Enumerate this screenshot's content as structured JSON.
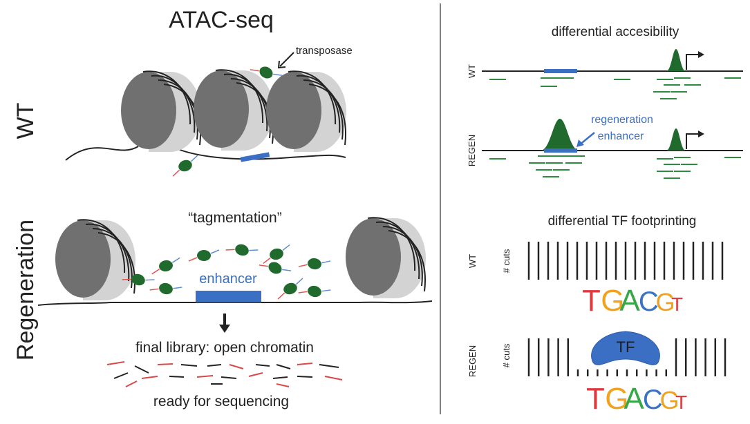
{
  "left": {
    "title": "ATAC-seq",
    "transposase_label": "transposase",
    "wt_label": "WT",
    "regen_label": "Regeneration",
    "tagmentation": "“tagmentation”",
    "enhancer": "enhancer",
    "library": "final library: open chromatin",
    "ready": "ready for sequencing"
  },
  "accessibility": {
    "title": "differential accesibility",
    "wt_label": "WT",
    "regen_label": "REGEN",
    "enhancer_label": [
      "regeneration",
      "enhancer"
    ]
  },
  "footprinting": {
    "title": "differential TF footprinting",
    "rows": [
      {
        "label": "WT",
        "axis": "# cuts",
        "motif": [
          "T",
          "G",
          "A",
          "C",
          "G",
          "T"
        ]
      },
      {
        "label": "REGEN",
        "axis": "# cuts",
        "bound": "TF",
        "motif": [
          "T",
          "G",
          "A",
          "C",
          "G",
          "T"
        ]
      }
    ]
  }
}
